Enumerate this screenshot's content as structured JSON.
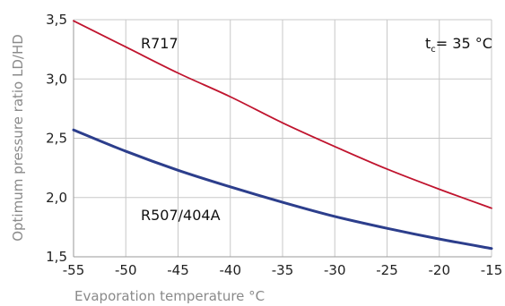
{
  "chart_data": {
    "type": "line",
    "xlabel": "Evaporation temperature °C",
    "ylabel": "Optimum pressure ratio LD/HD",
    "xlim": [
      -55,
      -15
    ],
    "ylim": [
      1.5,
      3.5
    ],
    "x_ticks": [
      -55,
      -50,
      -45,
      -40,
      -35,
      -30,
      -25,
      -20,
      -15
    ],
    "x_tick_labels": [
      "-55",
      "-50",
      "-45",
      "-40",
      "-35",
      "-30",
      "-25",
      "-20",
      "-15"
    ],
    "y_ticks": [
      1.5,
      2.0,
      2.5,
      3.0,
      3.5
    ],
    "y_tick_labels": [
      "1,5",
      "2,0",
      "2,5",
      "3,0",
      "3,5"
    ],
    "grid": true,
    "series": [
      {
        "name": "R717",
        "color": "#c0142e",
        "x": [
          -55,
          -50,
          -45,
          -40,
          -35,
          -30,
          -25,
          -20,
          -15
        ],
        "y": [
          3.49,
          3.27,
          3.05,
          2.85,
          2.63,
          2.43,
          2.24,
          2.07,
          1.91
        ]
      },
      {
        "name": "R507/404A",
        "color": "#2c3e8c",
        "x": [
          -55,
          -50,
          -45,
          -40,
          -35,
          -30,
          -25,
          -20,
          -15
        ],
        "y": [
          2.57,
          2.39,
          2.23,
          2.09,
          1.96,
          1.84,
          1.74,
          1.65,
          1.57
        ]
      }
    ],
    "annotation": {
      "t_main": "t",
      "t_sub": "c",
      "rest": "= 35 °C"
    }
  }
}
